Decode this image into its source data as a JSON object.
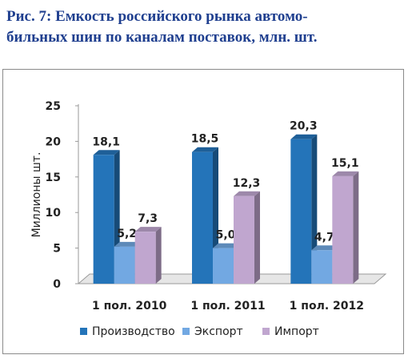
{
  "title": {
    "line1": "Рис. 7: Емкость российского рынка автомо-",
    "line2": "бильных шин по каналам поставок, млн. шт."
  },
  "chart_data": {
    "type": "bar",
    "ylabel": "Миллионы шт.",
    "ylim": [
      0,
      25
    ],
    "yticks": [
      0,
      5,
      10,
      15,
      20,
      25
    ],
    "categories": [
      "1 пол. 2010",
      "1 пол. 2011",
      "1 пол. 2012"
    ],
    "series": [
      {
        "name": "Производство",
        "color": "#2474b9",
        "values": [
          18.1,
          18.5,
          20.3
        ],
        "labels": [
          "18,1",
          "18,5",
          "20,3"
        ]
      },
      {
        "name": "Экспорт",
        "color": "#72a8e2",
        "values": [
          5.2,
          5.0,
          4.7
        ],
        "labels": [
          "5,2",
          "5,0",
          "4,7"
        ]
      },
      {
        "name": "Импорт",
        "color": "#c0a6cf",
        "values": [
          7.3,
          12.3,
          15.1
        ],
        "labels": [
          "7,3",
          "12,3",
          "15,1"
        ]
      }
    ],
    "legend_position": "bottom",
    "style": "3d"
  }
}
